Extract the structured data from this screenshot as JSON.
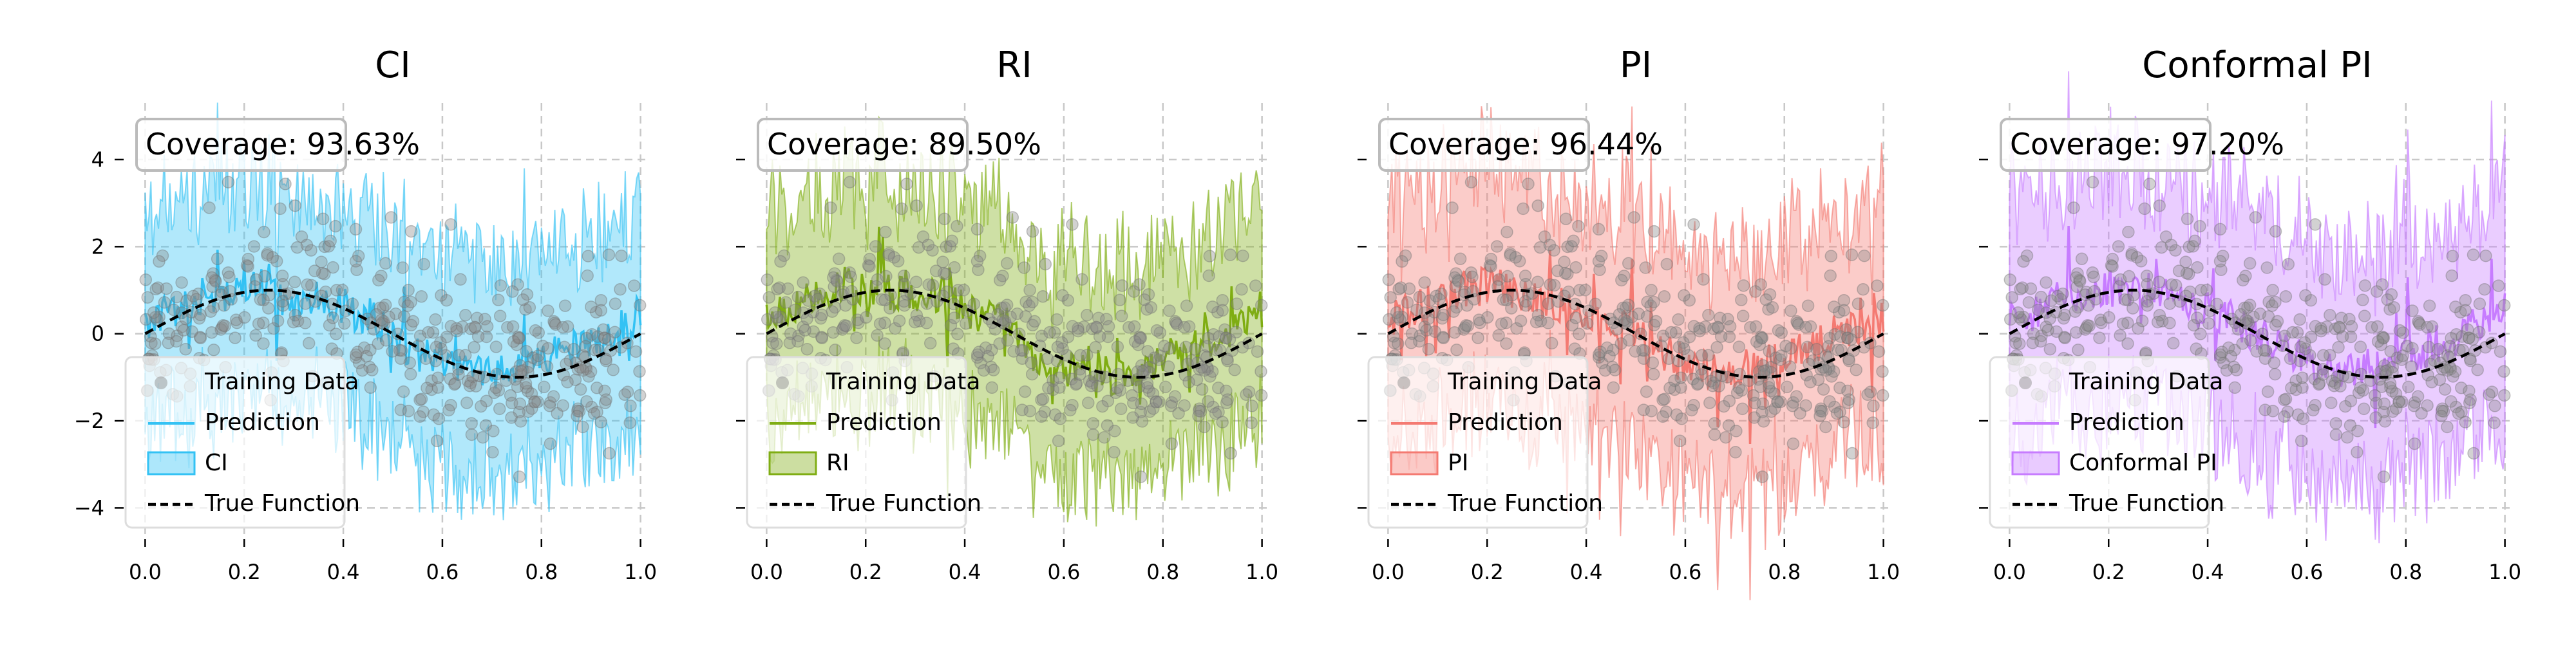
{
  "chart_data": [
    {
      "type": "scatter",
      "title": "CI",
      "xlabel": "",
      "ylabel": "",
      "xlim": [
        -0.02,
        1.02
      ],
      "ylim": [
        -4.6,
        5.3
      ],
      "xticks": [
        0.0,
        0.2,
        0.4,
        0.6,
        0.8,
        1.0
      ],
      "xtick_labels": [
        "0.0",
        "0.2",
        "0.4",
        "0.6",
        "0.8",
        "1.0"
      ],
      "yticks": [
        -4,
        -2,
        0,
        2,
        4
      ],
      "ytick_labels": [
        "−4",
        "−2",
        "0",
        "2",
        "4"
      ],
      "show_ytick_labels": true,
      "grid": true,
      "legend_position": "lower-left",
      "coverage_text": "Coverage: 93.63%",
      "band_color": "#33c2f4",
      "legend": [
        "Training Data",
        "Prediction",
        "CI",
        "True Function"
      ],
      "true_function": "sin(2*pi*x)",
      "prediction_anchors": {
        "x": [
          0.0,
          0.05,
          0.1,
          0.15,
          0.2,
          0.25,
          0.3,
          0.35,
          0.4,
          0.45,
          0.5,
          0.55,
          0.6,
          0.65,
          0.7,
          0.75,
          0.8,
          0.85,
          0.9,
          0.95,
          1.0
        ],
        "y": [
          0.2,
          0.5,
          0.8,
          0.9,
          1.2,
          1.0,
          0.7,
          0.8,
          0.6,
          0.4,
          0.0,
          -0.5,
          -0.7,
          -0.8,
          -0.9,
          -0.7,
          -0.6,
          -0.4,
          -0.2,
          0.1,
          0.5
        ]
      },
      "interval_half_width": 2.6
    },
    {
      "type": "scatter",
      "title": "RI",
      "xlabel": "",
      "ylabel": "",
      "xlim": [
        -0.02,
        1.02
      ],
      "ylim": [
        -4.6,
        5.3
      ],
      "xticks": [
        0.0,
        0.2,
        0.4,
        0.6,
        0.8,
        1.0
      ],
      "xtick_labels": [
        "0.0",
        "0.2",
        "0.4",
        "0.6",
        "0.8",
        "1.0"
      ],
      "yticks": [
        -4,
        -2,
        0,
        2,
        4
      ],
      "ytick_labels": [
        "−4",
        "−2",
        "0",
        "2",
        "4"
      ],
      "show_ytick_labels": false,
      "grid": true,
      "legend_position": "lower-left",
      "coverage_text": "Coverage: 89.50%",
      "band_color": "#7fad13",
      "legend": [
        "Training Data",
        "Prediction",
        "RI",
        "True Function"
      ],
      "true_function": "sin(2*pi*x)",
      "prediction_anchors": {
        "x": [
          0.0,
          0.05,
          0.1,
          0.15,
          0.2,
          0.25,
          0.3,
          0.35,
          0.4,
          0.45,
          0.5,
          0.55,
          0.6,
          0.65,
          0.7,
          0.75,
          0.8,
          0.85,
          0.9,
          0.95,
          1.0
        ],
        "y": [
          0.3,
          0.6,
          0.9,
          1.1,
          1.0,
          0.9,
          0.8,
          0.9,
          0.5,
          0.3,
          0.1,
          -0.6,
          -0.8,
          -0.7,
          -1.0,
          -0.8,
          -0.5,
          -0.4,
          -0.1,
          0.2,
          0.6
        ]
      },
      "interval_half_width": 2.7
    },
    {
      "type": "scatter",
      "title": "PI",
      "xlabel": "",
      "ylabel": "",
      "xlim": [
        -0.02,
        1.02
      ],
      "ylim": [
        -4.6,
        5.3
      ],
      "xticks": [
        0.0,
        0.2,
        0.4,
        0.6,
        0.8,
        1.0
      ],
      "xtick_labels": [
        "0.0",
        "0.2",
        "0.4",
        "0.6",
        "0.8",
        "1.0"
      ],
      "yticks": [
        -4,
        -2,
        0,
        2,
        4
      ],
      "ytick_labels": [
        "−4",
        "−2",
        "0",
        "2",
        "4"
      ],
      "show_ytick_labels": false,
      "grid": true,
      "legend_position": "lower-left",
      "coverage_text": "Coverage: 96.44%",
      "band_color": "#f47a72",
      "legend": [
        "Training Data",
        "Prediction",
        "PI",
        "True Function"
      ],
      "true_function": "sin(2*pi*x)",
      "prediction_anchors": {
        "x": [
          0.0,
          0.05,
          0.1,
          0.15,
          0.2,
          0.25,
          0.3,
          0.35,
          0.4,
          0.45,
          0.5,
          0.55,
          0.6,
          0.65,
          0.7,
          0.75,
          0.8,
          0.85,
          0.9,
          0.95,
          1.0
        ],
        "y": [
          0.2,
          0.6,
          0.7,
          1.0,
          1.1,
          1.0,
          0.8,
          0.7,
          0.6,
          0.3,
          0.0,
          -0.4,
          -0.7,
          -0.8,
          -0.8,
          -0.7,
          -0.6,
          -0.3,
          -0.1,
          0.2,
          0.4
        ]
      },
      "interval_half_width": 2.9
    },
    {
      "type": "scatter",
      "title": "Conformal PI",
      "xlabel": "",
      "ylabel": "",
      "xlim": [
        -0.02,
        1.02
      ],
      "ylim": [
        -4.6,
        5.3
      ],
      "xticks": [
        0.0,
        0.2,
        0.4,
        0.6,
        0.8,
        1.0
      ],
      "xtick_labels": [
        "0.0",
        "0.2",
        "0.4",
        "0.6",
        "0.8",
        "1.0"
      ],
      "yticks": [
        -4,
        -2,
        0,
        2,
        4
      ],
      "ytick_labels": [
        "−4",
        "−2",
        "0",
        "2",
        "4"
      ],
      "show_ytick_labels": false,
      "grid": true,
      "legend_position": "lower-left",
      "coverage_text": "Coverage: 97.20%",
      "band_color": "#c77cff",
      "legend": [
        "Training Data",
        "Prediction",
        "Conformal PI",
        "True Function"
      ],
      "true_function": "sin(2*pi*x)",
      "prediction_anchors": {
        "x": [
          0.0,
          0.05,
          0.1,
          0.15,
          0.2,
          0.25,
          0.3,
          0.35,
          0.4,
          0.45,
          0.5,
          0.55,
          0.6,
          0.65,
          0.7,
          0.75,
          0.8,
          0.85,
          0.9,
          0.95,
          1.0
        ],
        "y": [
          0.3,
          0.5,
          0.8,
          1.0,
          1.0,
          1.1,
          0.9,
          0.7,
          0.5,
          0.3,
          0.0,
          -0.4,
          -0.6,
          -0.8,
          -0.8,
          -0.7,
          -0.5,
          -0.3,
          -0.1,
          0.3,
          0.5
        ]
      },
      "interval_half_width": 2.9
    }
  ],
  "training_data": {
    "color": "#888888",
    "n_points": 420,
    "generator": "sin(2*pi*x) + noise(sd=1.0)"
  }
}
